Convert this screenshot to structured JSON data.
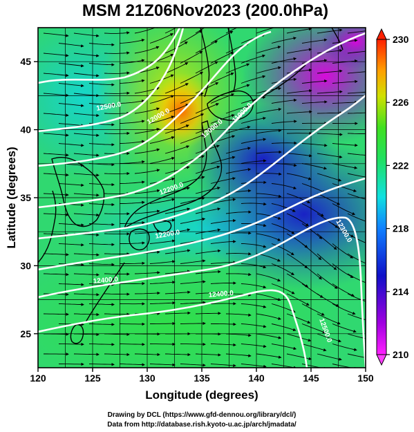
{
  "title": "MSM 21Z06Nov2023 (200.0hPa)",
  "x_axis": {
    "label": "Longitude (degrees)",
    "ticks": [
      "120",
      "125",
      "130",
      "135",
      "140",
      "145",
      "150"
    ],
    "range": [
      120,
      150
    ]
  },
  "y_axis": {
    "label": "Latitude  (degrees)",
    "ticks": [
      "25",
      "30",
      "35",
      "40",
      "45"
    ],
    "range": [
      22.5,
      47.5
    ]
  },
  "colorbar": {
    "ticks": [
      "230",
      "226",
      "222",
      "218",
      "214",
      "210"
    ],
    "range": [
      210,
      230
    ]
  },
  "contour_labels": [
    "12500.0",
    "12000.0",
    "12000.0",
    "11900.0",
    "12200.0",
    "12200.0",
    "12300.0",
    "12400.0",
    "12400.0",
    "12500.0"
  ],
  "credits": {
    "line1": "Drawing by DCL (https://www.gfd-dennou.org/library/dcl/)",
    "line2": "Data from http://database.rish.kyoto-u.ac.jp/arch/jmadata/"
  },
  "colors": {
    "low": "#d400d4",
    "mid_low": "#1020c8",
    "mid": "#10e0e0",
    "mid_high": "#30e030",
    "high": "#ffd000",
    "peak": "#ff3000"
  }
}
